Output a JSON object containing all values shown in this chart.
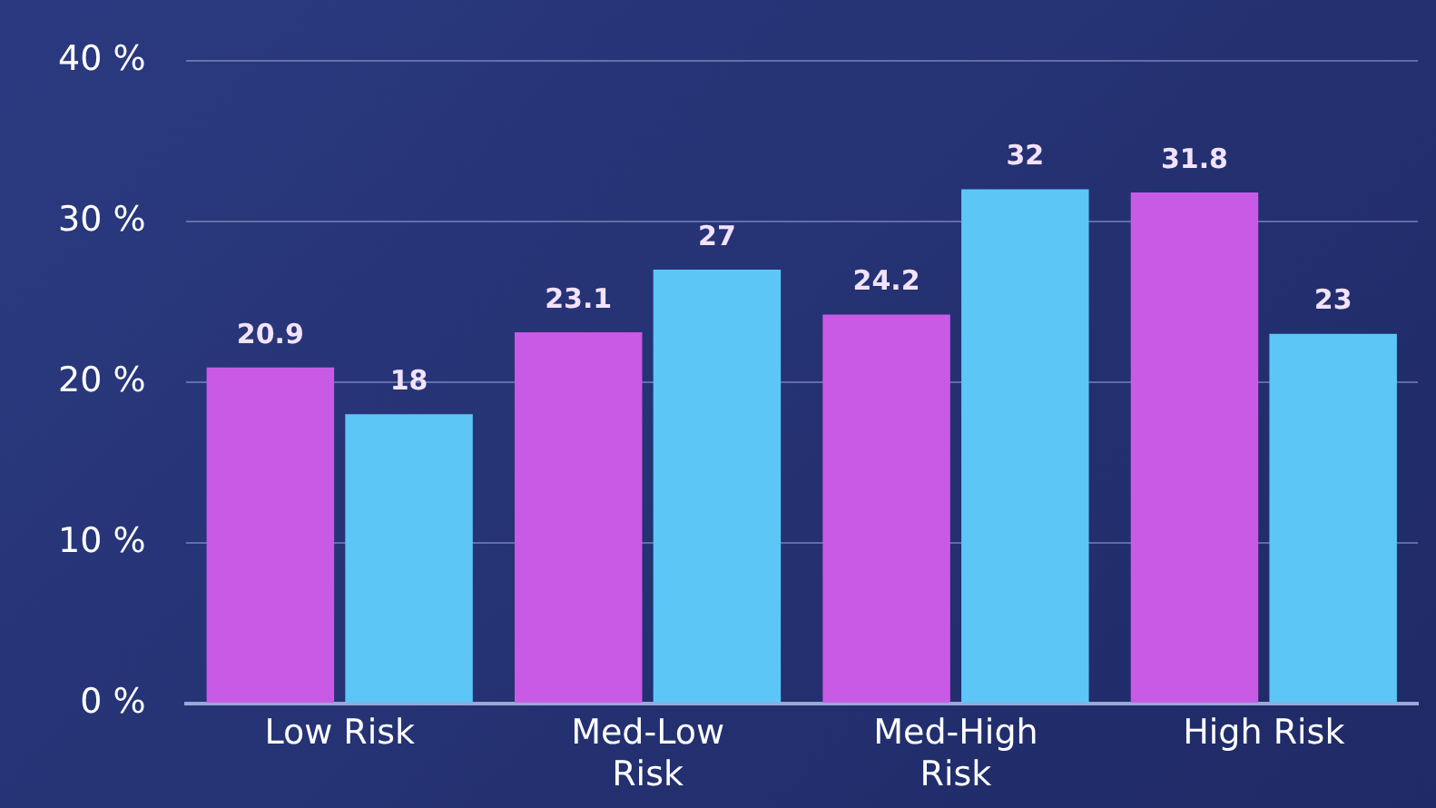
{
  "chart_data": {
    "type": "bar",
    "categories": [
      "Low Risk",
      "Med-Low Risk",
      "Med-High Risk",
      "High Risk"
    ],
    "series": [
      {
        "color": "#c85ae6",
        "values": [
          20.9,
          23.1,
          24.2,
          31.8
        ]
      },
      {
        "color": "#5cc6f7",
        "values": [
          18,
          27,
          32,
          23
        ]
      }
    ],
    "ylim": [
      0,
      40
    ],
    "yticks": [
      {
        "value": 0,
        "label": "0 %"
      },
      {
        "value": 10,
        "label": "10 %"
      },
      {
        "value": 20,
        "label": "20 %"
      },
      {
        "value": 30,
        "label": "30 %"
      },
      {
        "value": 40,
        "label": "40 %"
      }
    ],
    "grid": "y",
    "legend": false,
    "data_labels": true
  }
}
